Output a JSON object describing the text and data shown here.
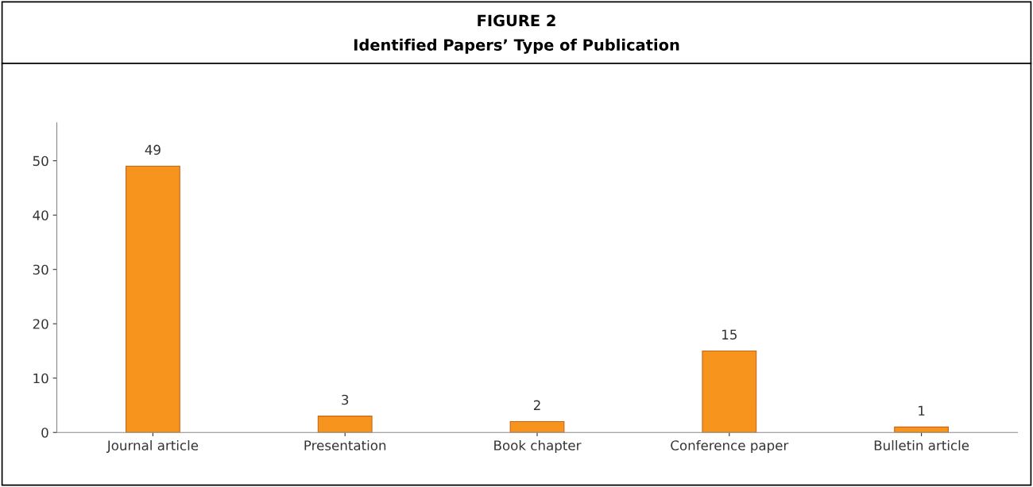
{
  "chart_data": {
    "type": "bar",
    "title": "FIGURE 2",
    "subtitle": "Identified Papers’ Type of Publication",
    "categories": [
      "Journal article",
      "Presentation",
      "Book chapter",
      "Conference paper",
      "Bulletin article"
    ],
    "values": [
      49,
      3,
      2,
      15,
      1
    ],
    "color": "#f7941d",
    "ylim": [
      0,
      57
    ],
    "yticks": [
      0,
      10,
      20,
      30,
      40,
      50
    ],
    "grid": false,
    "data_labels": true
  }
}
